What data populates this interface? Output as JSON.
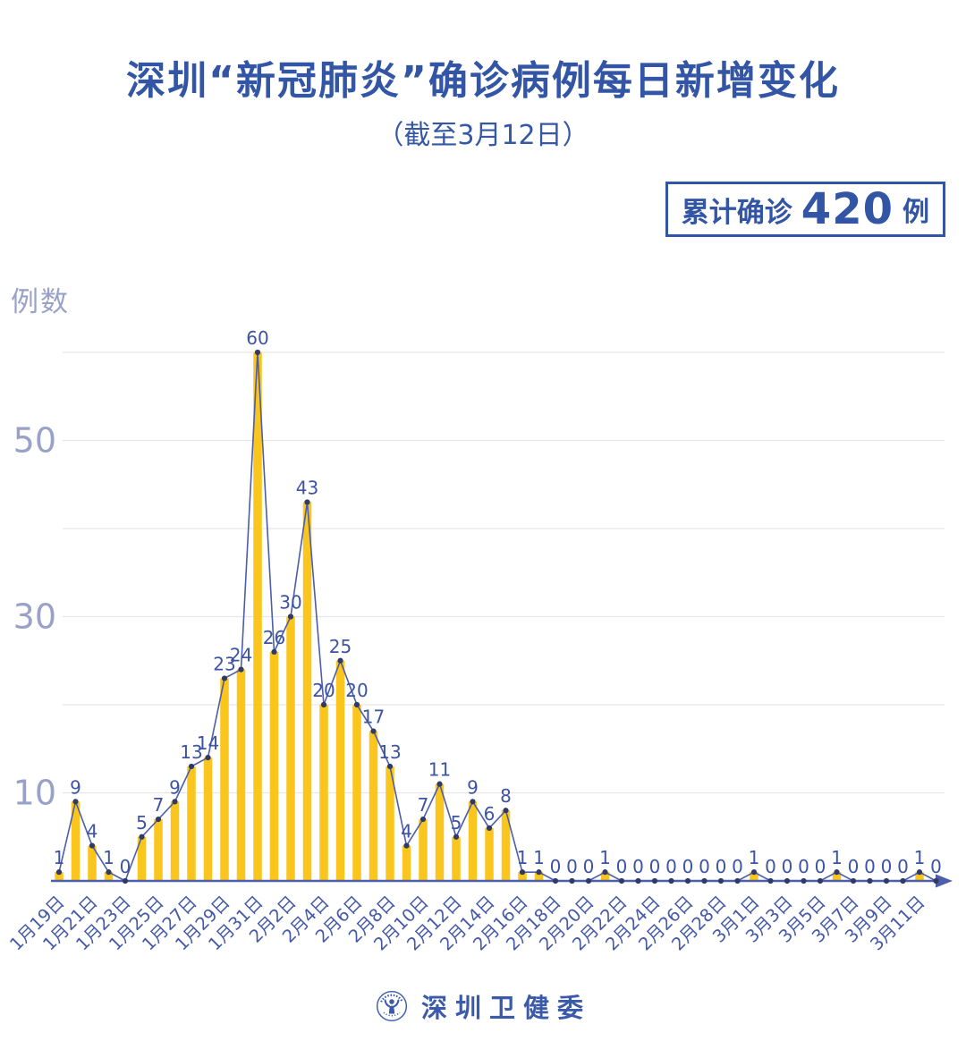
{
  "badge": {
    "prefix": "累计确诊",
    "value": "420",
    "suffix": "例"
  },
  "footer": {
    "org": "深圳卫健委",
    "logo_icon": "shenzhen-health-commission-emblem"
  },
  "chart_data": {
    "type": "bar",
    "title": "深圳“新冠肺炎”确诊病例每日新增变化",
    "subtitle": "（截至3月12日）",
    "annotation_total": "累计确诊 420 例",
    "xlabel": "",
    "ylabel": "例数",
    "categories": [
      "1月19日",
      "1月20日",
      "1月21日",
      "1月22日",
      "1月23日",
      "1月24日",
      "1月25日",
      "1月26日",
      "1月27日",
      "1月28日",
      "1月29日",
      "1月30日",
      "1月31日",
      "2月1日",
      "2月2日",
      "2月3日",
      "2月4日",
      "2月5日",
      "2月6日",
      "2月7日",
      "2月8日",
      "2月9日",
      "2月10日",
      "2月11日",
      "2月12日",
      "2月13日",
      "2月14日",
      "2月15日",
      "2月16日",
      "2月17日",
      "2月18日",
      "2月19日",
      "2月20日",
      "2月21日",
      "2月22日",
      "2月23日",
      "2月24日",
      "2月25日",
      "2月26日",
      "2月27日",
      "2月28日",
      "2月29日",
      "3月1日",
      "3月2日",
      "3月3日",
      "3月4日",
      "3月5日",
      "3月6日",
      "3月7日",
      "3月8日",
      "3月9日",
      "3月10日",
      "3月11日",
      "3月12日"
    ],
    "values": [
      1,
      9,
      4,
      1,
      0,
      5,
      7,
      9,
      13,
      14,
      23,
      24,
      60,
      26,
      30,
      43,
      20,
      25,
      20,
      17,
      13,
      4,
      7,
      11,
      5,
      9,
      6,
      8,
      1,
      1,
      0,
      0,
      0,
      1,
      0,
      0,
      0,
      0,
      0,
      0,
      0,
      0,
      1,
      0,
      0,
      0,
      0,
      1,
      0,
      0,
      0,
      0,
      1,
      0
    ],
    "ylim": [
      0,
      60
    ],
    "yticks_labeled": [
      10,
      30,
      50
    ],
    "gridlines": [
      10,
      20,
      30,
      40,
      50,
      60
    ],
    "x_label_step": 2,
    "grid": true,
    "legend": null,
    "colors": {
      "bar": "#FAC51C",
      "line": "#4C5DA9",
      "marker": "#2F3A66",
      "value_label": "#3D53A3",
      "tick_label": "#4459A7",
      "y_tick_label": "#9AA1C9",
      "grid": "#E6E6EA",
      "accent": "#3355A5"
    }
  }
}
